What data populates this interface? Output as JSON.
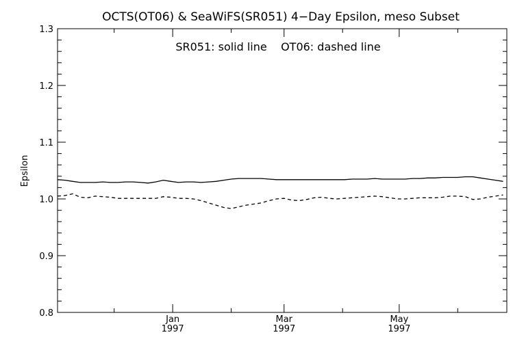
{
  "chart_data": {
    "type": "line",
    "title": "OCTS(OT06) & SeaWiFS(SR051) 4−Day Epsilon, meso Subset",
    "annotation": "SR051: solid line    OT06: dashed line",
    "xlabel": "",
    "ylabel": "Epsilon",
    "xlim": [
      "1996-11-01",
      "1997-06-27"
    ],
    "ylim": [
      0.8,
      1.3
    ],
    "yticks": [
      "0.8",
      "0.9",
      "1.0",
      "1.1",
      "1.2",
      "1.3"
    ],
    "xticks": [
      {
        "date": "1997-01-01",
        "month": "Jan",
        "year": "1997"
      },
      {
        "date": "1997-03-01",
        "month": "Mar",
        "year": "1997"
      },
      {
        "date": "1997-05-01",
        "month": "May",
        "year": "1997"
      }
    ],
    "x_minor_ticks": [
      "1996-12-01",
      "1997-02-01",
      "1997-04-01",
      "1997-06-01"
    ],
    "grid": false,
    "x": [
      "1996-11-01",
      "1996-11-05",
      "1996-11-09",
      "1996-11-13",
      "1996-11-17",
      "1996-11-21",
      "1996-11-25",
      "1996-11-29",
      "1996-12-03",
      "1996-12-07",
      "1996-12-11",
      "1996-12-15",
      "1996-12-19",
      "1996-12-23",
      "1996-12-27",
      "1996-12-31",
      "1997-01-04",
      "1997-01-08",
      "1997-01-12",
      "1997-01-16",
      "1997-01-20",
      "1997-01-24",
      "1997-01-28",
      "1997-02-01",
      "1997-02-05",
      "1997-02-09",
      "1997-02-13",
      "1997-02-17",
      "1997-02-21",
      "1997-02-25",
      "1997-03-01",
      "1997-03-05",
      "1997-03-09",
      "1997-03-13",
      "1997-03-17",
      "1997-03-21",
      "1997-03-25",
      "1997-03-29",
      "1997-04-02",
      "1997-04-06",
      "1997-04-10",
      "1997-04-14",
      "1997-04-18",
      "1997-04-22",
      "1997-04-26",
      "1997-04-30",
      "1997-05-04",
      "1997-05-08",
      "1997-05-12",
      "1997-05-16",
      "1997-05-20",
      "1997-05-24",
      "1997-05-28",
      "1997-06-01",
      "1997-06-05",
      "1997-06-09",
      "1997-06-13",
      "1997-06-17",
      "1997-06-21",
      "1997-06-25"
    ],
    "series": [
      {
        "name": "SR051",
        "style": "solid",
        "color": "#000000",
        "values": [
          1.034,
          1.033,
          1.031,
          1.029,
          1.029,
          1.029,
          1.03,
          1.029,
          1.029,
          1.03,
          1.03,
          1.029,
          1.028,
          1.03,
          1.033,
          1.031,
          1.029,
          1.03,
          1.03,
          1.029,
          1.03,
          1.031,
          1.033,
          1.035,
          1.036,
          1.036,
          1.036,
          1.036,
          1.035,
          1.034,
          1.034,
          1.034,
          1.034,
          1.034,
          1.034,
          1.034,
          1.034,
          1.034,
          1.034,
          1.035,
          1.035,
          1.035,
          1.036,
          1.035,
          1.035,
          1.035,
          1.035,
          1.036,
          1.036,
          1.037,
          1.037,
          1.038,
          1.038,
          1.038,
          1.039,
          1.039,
          1.037,
          1.035,
          1.033,
          1.031
        ]
      },
      {
        "name": "OT06",
        "style": "dashed",
        "color": "#000000",
        "values": [
          1.005,
          1.006,
          1.009,
          1.003,
          1.002,
          1.005,
          1.004,
          1.003,
          1.001,
          1.001,
          1.001,
          1.001,
          1.001,
          1.001,
          1.004,
          1.003,
          1.001,
          1.001,
          1.0,
          0.997,
          0.993,
          0.989,
          0.985,
          0.983,
          0.986,
          0.989,
          0.991,
          0.993,
          0.997,
          1.0,
          1.001,
          0.998,
          0.997,
          0.999,
          1.002,
          1.003,
          1.001,
          1.0,
          1.001,
          1.002,
          1.003,
          1.004,
          1.005,
          1.004,
          1.002,
          1.0,
          1.0,
          1.001,
          1.002,
          1.002,
          1.002,
          1.003,
          1.005,
          1.005,
          1.004,
          0.999,
          1.0,
          1.003,
          1.005,
          1.007
        ]
      }
    ]
  }
}
